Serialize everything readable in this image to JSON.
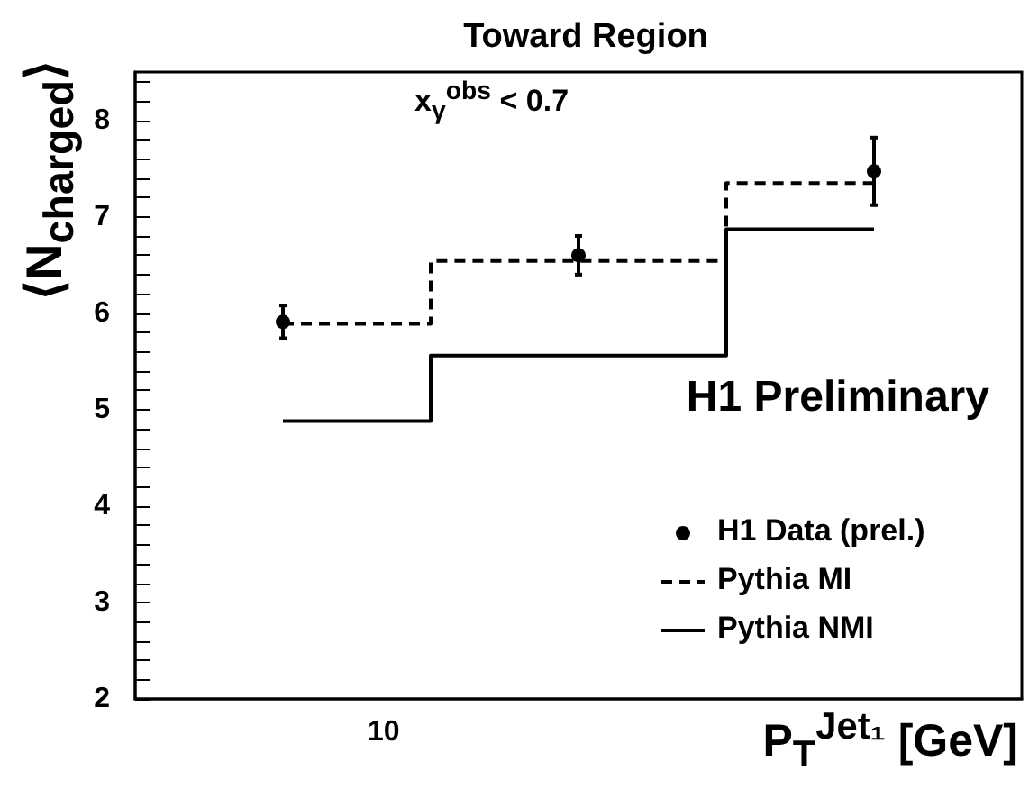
{
  "chart_data": {
    "type": "scatter",
    "title": "Toward Region",
    "xlabel": "P$_{T}$$^{Jet₁}$ [GeV]",
    "ylabel": "⟨N$_{charged}$⟩",
    "grid": false,
    "legend": "right",
    "categories": [
      null,
      null,
      null
    ],
    "ylim": [
      2,
      8.5
    ],
    "yticks": [
      2,
      {
        "value": 2.2,
        "label": null
      },
      {
        "value": 2.4,
        "label": null
      },
      {
        "value": 2.6,
        "label": null
      },
      {
        "value": 2.8,
        "label": null
      },
      3,
      {
        "value": 3.2,
        "label": null
      },
      {
        "value": 3.4,
        "label": null
      },
      {
        "value": 3.6,
        "label": null
      },
      {
        "value": 3.8,
        "label": null
      },
      4,
      {
        "value": 4.2,
        "label": null
      },
      {
        "value": 4.4,
        "label": null
      },
      {
        "value": 4.6,
        "label": null
      },
      {
        "value": 4.8,
        "label": null
      },
      5,
      {
        "value": 5.2,
        "label": null
      },
      {
        "value": 5.4,
        "label": null
      },
      {
        "value": 5.6,
        "label": null
      },
      {
        "value": 5.8,
        "label": null
      },
      6,
      {
        "value": 6.2,
        "label": null
      },
      {
        "value": 6.4,
        "label": null
      },
      {
        "value": 6.6,
        "label": null
      },
      {
        "value": 6.8,
        "label": null
      },
      7,
      {
        "value": 7.2,
        "label": null
      },
      {
        "value": 7.4,
        "label": null
      },
      {
        "value": 7.6,
        "label": null
      },
      {
        "value": 7.8,
        "label": null
      },
      8,
      {
        "value": 8.2,
        "label": null
      },
      {
        "value": 8.4,
        "label": null
      }
    ],
    "annotations": [
      "x$_{γ}$$^{obs}$ < 0.7",
      "H1 Preliminary",
      "10"
    ],
    "series": [
      {
        "name": "H1 Data (prel.)",
        "marker": "circle",
        "color": "#000000",
        "values": [
          5.91,
          6.6,
          7.47
        ],
        "errors": [
          0.17,
          0.2,
          0.35
        ]
      },
      {
        "name": "Pythia MI",
        "type": "step",
        "marker": "none",
        "line_style": "dashed",
        "color": "#000000",
        "values": [
          5.89,
          6.54,
          7.35
        ]
      },
      {
        "name": "Pythia NMI",
        "type": "step",
        "marker": "none",
        "line_style": "solid",
        "color": "#000000",
        "values": [
          4.88,
          5.56,
          6.87
        ]
      }
    ]
  }
}
